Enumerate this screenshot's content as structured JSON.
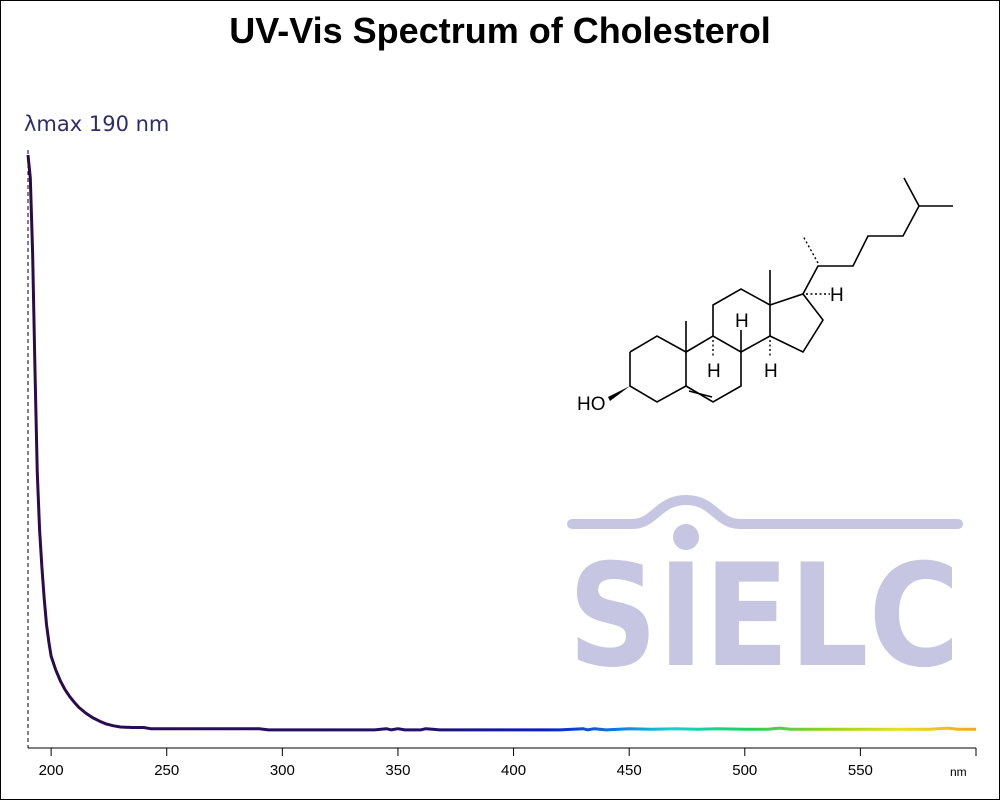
{
  "chart_data": {
    "type": "line",
    "title": "UV-Vis Spectrum of Cholesterol",
    "annotation": "λmax  190 nm",
    "lambda_max": 190,
    "xlabel": "",
    "x_unit": "nm",
    "ylabel": "",
    "xlim": [
      190,
      600
    ],
    "ylim": [
      0,
      1
    ],
    "x_ticks": [
      200,
      250,
      300,
      350,
      400,
      450,
      500,
      550
    ],
    "x_tick_labels": [
      "200",
      "250",
      "300",
      "350",
      "400",
      "450",
      "500",
      "550"
    ],
    "y_axis_shown": false,
    "grid": false,
    "legend": "none",
    "line_color": "wavelength-gradient",
    "series": [
      {
        "x": [
          190,
          191,
          192,
          193,
          194,
          195,
          196,
          197,
          198,
          199,
          200,
          202,
          204,
          206,
          208,
          210,
          212,
          215,
          218,
          221,
          224,
          227,
          230,
          235,
          240,
          243,
          250,
          260,
          270,
          280,
          290,
          294,
          300,
          320,
          340,
          345,
          347,
          350,
          353,
          360,
          362,
          365,
          368,
          380,
          400,
          420,
          430,
          432,
          435,
          440,
          450,
          460,
          470,
          480,
          488,
          500,
          510,
          515,
          520,
          540,
          560,
          580,
          588,
          592,
          600
        ],
        "values": [
          1.0,
          0.96,
          0.83,
          0.63,
          0.45,
          0.35,
          0.285,
          0.23,
          0.185,
          0.155,
          0.13,
          0.106,
          0.087,
          0.072,
          0.06,
          0.05,
          0.041,
          0.031,
          0.023,
          0.017,
          0.012,
          0.009,
          0.007,
          0.006,
          0.006,
          0.004,
          0.004,
          0.004,
          0.004,
          0.004,
          0.004,
          0.002,
          0.002,
          0.002,
          0.002,
          0.004,
          0.002,
          0.004,
          0.002,
          0.002,
          0.004,
          0.003,
          0.002,
          0.002,
          0.002,
          0.002,
          0.004,
          0.002,
          0.004,
          0.002,
          0.004,
          0.003,
          0.004,
          0.003,
          0.004,
          0.003,
          0.003,
          0.005,
          0.003,
          0.003,
          0.003,
          0.003,
          0.005,
          0.003,
          0.003
        ]
      }
    ]
  },
  "structure": {
    "atom_labels": [
      "HO",
      "H",
      "H",
      "H",
      "H"
    ]
  },
  "watermark": {
    "brand": "SIELC"
  }
}
